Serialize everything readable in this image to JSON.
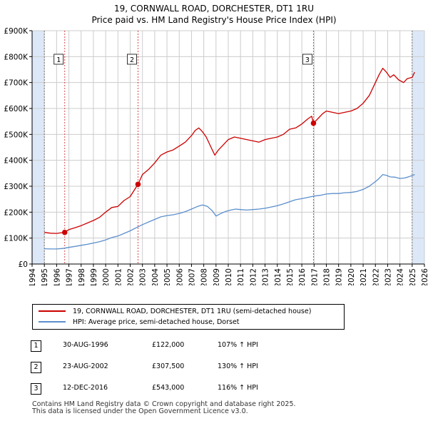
{
  "title_line1": "19, CORNWALL ROAD, DORCHESTER, DT1 1RU",
  "title_line2": "Price paid vs. HM Land Registry's House Price Index (HPI)",
  "colors": {
    "property": "#cc0000",
    "hpi": "#5b8fcc",
    "marker": "#cc0000",
    "band": "#dce8f8",
    "grid": "#cccccc"
  },
  "chart_data": {
    "type": "line",
    "title": "19, CORNWALL ROAD, DORCHESTER, DT1 1RU — Price paid vs. HM Land Registry's House Price Index (HPI)",
    "xlabel": "",
    "ylabel": "",
    "xlim": [
      1994,
      2026
    ],
    "ylim": [
      0,
      900000
    ],
    "y_ticks": [
      {
        "value": 0,
        "label": "£0"
      },
      {
        "value": 100000,
        "label": "£100K"
      },
      {
        "value": 200000,
        "label": "£200K"
      },
      {
        "value": 300000,
        "label": "£300K"
      },
      {
        "value": 400000,
        "label": "£400K"
      },
      {
        "value": 500000,
        "label": "£500K"
      },
      {
        "value": 600000,
        "label": "£600K"
      },
      {
        "value": 700000,
        "label": "£700K"
      },
      {
        "value": 800000,
        "label": "£800K"
      },
      {
        "value": 900000,
        "label": "£900K"
      }
    ],
    "x_ticks": [
      "1994",
      "1995",
      "1996",
      "1997",
      "1998",
      "1999",
      "2000",
      "2001",
      "2002",
      "2003",
      "2004",
      "2005",
      "2006",
      "2007",
      "2008",
      "2009",
      "2010",
      "2011",
      "2012",
      "2013",
      "2014",
      "2015",
      "2016",
      "2017",
      "2018",
      "2019",
      "2020",
      "2021",
      "2022",
      "2023",
      "2024",
      "2025",
      "2026"
    ],
    "shaded_ranges": [
      [
        1994,
        1995.0
      ],
      [
        2025.0,
        2026
      ]
    ],
    "series": [
      {
        "name": "19, CORNWALL ROAD, DORCHESTER, DT1 1RU (semi-detached house)",
        "x": [
          1995.0,
          1995.5,
          1996.0,
          1996.3,
          1996.66,
          1997.0,
          1997.5,
          1998.0,
          1998.5,
          1999.0,
          1999.5,
          2000.0,
          2000.5,
          2001.0,
          2001.5,
          2002.0,
          2002.4,
          2002.64,
          2003.0,
          2003.5,
          2004.0,
          2004.5,
          2005.0,
          2005.5,
          2006.0,
          2006.5,
          2007.0,
          2007.3,
          2007.6,
          2007.9,
          2008.2,
          2008.6,
          2008.9,
          2009.2,
          2009.6,
          2010.0,
          2010.5,
          2011.0,
          2011.5,
          2012.0,
          2012.5,
          2013.0,
          2013.5,
          2014.0,
          2014.5,
          2015.0,
          2015.5,
          2016.0,
          2016.5,
          2016.8,
          2016.95,
          2017.3,
          2017.7,
          2018.0,
          2018.5,
          2019.0,
          2019.5,
          2020.0,
          2020.5,
          2021.0,
          2021.5,
          2022.0,
          2022.3,
          2022.6,
          2022.9,
          2023.2,
          2023.5,
          2023.9,
          2024.3,
          2024.6,
          2025.0,
          2025.2
        ],
        "y": [
          122000,
          119000,
          118000,
          120000,
          122000,
          133000,
          140000,
          148000,
          158000,
          168000,
          180000,
          200000,
          218000,
          222000,
          245000,
          260000,
          290000,
          307500,
          345000,
          365000,
          390000,
          420000,
          432000,
          440000,
          455000,
          470000,
          495000,
          515000,
          525000,
          510000,
          490000,
          450000,
          420000,
          440000,
          460000,
          480000,
          490000,
          485000,
          480000,
          475000,
          470000,
          480000,
          485000,
          490000,
          500000,
          520000,
          525000,
          540000,
          560000,
          570000,
          543000,
          560000,
          580000,
          590000,
          585000,
          580000,
          585000,
          590000,
          600000,
          620000,
          650000,
          700000,
          730000,
          755000,
          740000,
          720000,
          730000,
          710000,
          700000,
          715000,
          720000,
          740000
        ]
      },
      {
        "name": "HPI: Average price, semi-detached house, Dorset",
        "x": [
          1995.0,
          1995.5,
          1996.0,
          1996.5,
          1997.0,
          1997.5,
          1998.0,
          1998.5,
          1999.0,
          1999.5,
          2000.0,
          2000.5,
          2001.0,
          2001.5,
          2002.0,
          2002.5,
          2003.0,
          2003.5,
          2004.0,
          2004.5,
          2005.0,
          2005.5,
          2006.0,
          2006.5,
          2007.0,
          2007.5,
          2007.9,
          2008.3,
          2008.7,
          2009.0,
          2009.4,
          2009.8,
          2010.2,
          2010.6,
          2011.0,
          2011.5,
          2012.0,
          2012.5,
          2013.0,
          2013.5,
          2014.0,
          2014.5,
          2015.0,
          2015.5,
          2016.0,
          2016.5,
          2017.0,
          2017.5,
          2018.0,
          2018.5,
          2019.0,
          2019.5,
          2020.0,
          2020.5,
          2021.0,
          2021.5,
          2022.0,
          2022.3,
          2022.6,
          2022.9,
          2023.2,
          2023.6,
          2024.0,
          2024.4,
          2024.8,
          2025.2
        ],
        "y": [
          59000,
          58000,
          58000,
          60000,
          64000,
          68000,
          72000,
          76000,
          81000,
          86000,
          93000,
          102000,
          108000,
          118000,
          128000,
          140000,
          152000,
          162000,
          172000,
          182000,
          187000,
          190000,
          195000,
          202000,
          212000,
          222000,
          228000,
          222000,
          205000,
          185000,
          195000,
          203000,
          208000,
          212000,
          210000,
          208000,
          210000,
          212000,
          215000,
          220000,
          225000,
          232000,
          240000,
          248000,
          252000,
          257000,
          262000,
          265000,
          270000,
          272000,
          272000,
          275000,
          276000,
          280000,
          288000,
          300000,
          318000,
          330000,
          345000,
          342000,
          336000,
          335000,
          330000,
          332000,
          338000,
          345000
        ]
      }
    ],
    "markers": [
      {
        "label": "1",
        "x": 1996.66,
        "y": 122000
      },
      {
        "label": "2",
        "x": 2002.64,
        "y": 307500
      },
      {
        "label": "3",
        "x": 2016.95,
        "y": 543000
      }
    ]
  },
  "legend": {
    "property_label": "19, CORNWALL ROAD, DORCHESTER, DT1 1RU (semi-detached house)",
    "hpi_label": "HPI: Average price, semi-detached house, Dorset"
  },
  "transactions": [
    {
      "num": "1",
      "date": "30-AUG-1996",
      "price": "£122,000",
      "hpi": "107% ↑ HPI"
    },
    {
      "num": "2",
      "date": "23-AUG-2002",
      "price": "£307,500",
      "hpi": "130% ↑ HPI"
    },
    {
      "num": "3",
      "date": "12-DEC-2016",
      "price": "£543,000",
      "hpi": "116% ↑ HPI"
    }
  ],
  "footer_line1": "Contains HM Land Registry data © Crown copyright and database right 2025.",
  "footer_line2": "This data is licensed under the Open Government Licence v3.0."
}
